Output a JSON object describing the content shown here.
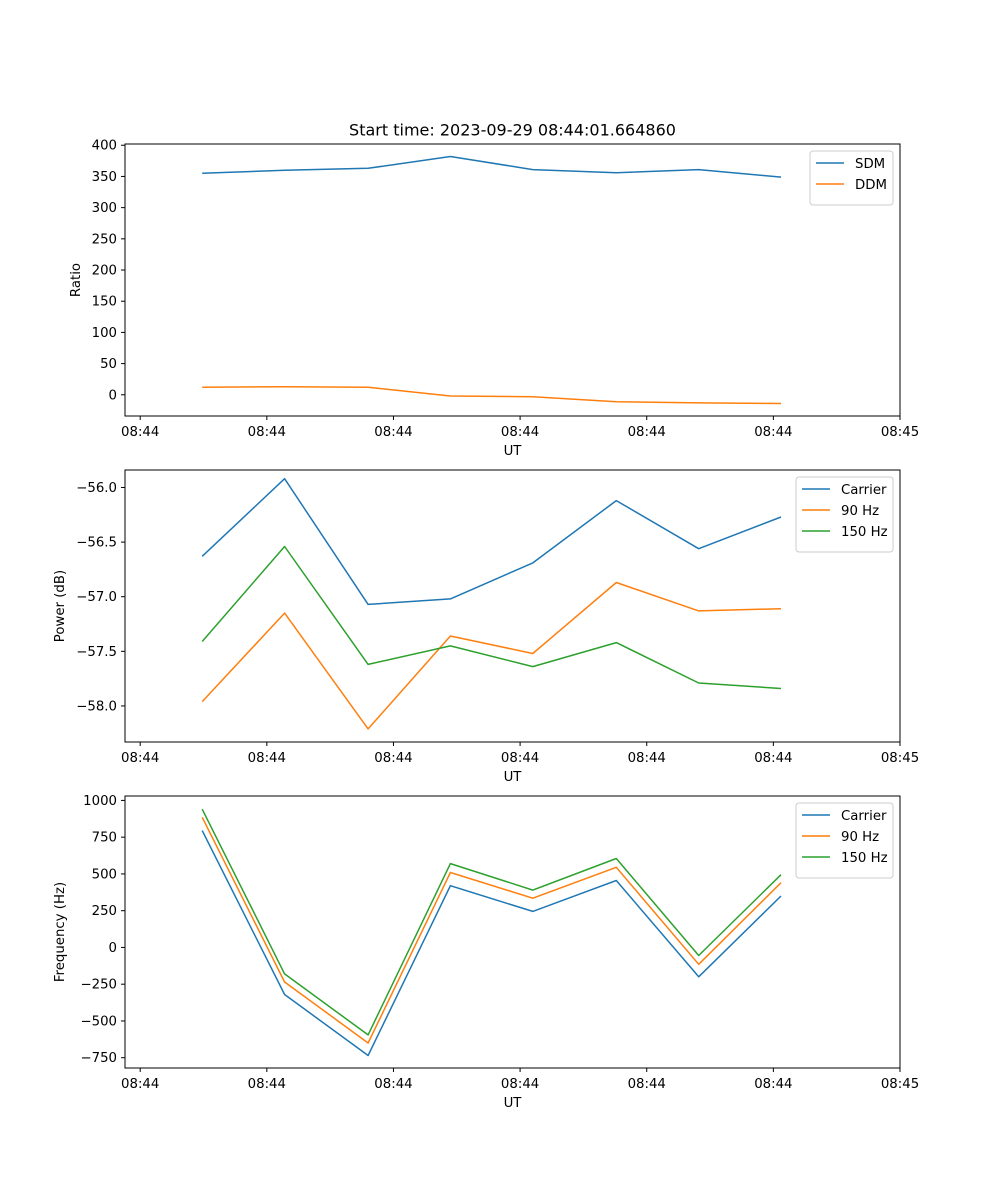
{
  "figure": {
    "title": "Start time: 2023-09-29 08:44:01.664860"
  },
  "chart_data": [
    {
      "type": "line",
      "title": "Start time: 2023-09-29 08:44:01.664860",
      "xlabel": "UT",
      "ylabel": "Ratio",
      "x_tick_labels": [
        "08:44",
        "08:44",
        "08:44",
        "08:44",
        "08:44",
        "08:44",
        "08:45"
      ],
      "x_tick_positions": [
        0,
        1,
        2,
        3,
        4,
        5,
        6
      ],
      "x": [
        0.49,
        1.14,
        1.8,
        2.45,
        3.1,
        3.76,
        4.41,
        5.06
      ],
      "xlim": [
        -0.12,
        6.0
      ],
      "ylim": [
        -34,
        402
      ],
      "y_ticks": [
        0,
        50,
        100,
        150,
        200,
        250,
        300,
        350,
        400
      ],
      "y_tick_labels": [
        "0",
        "50",
        "100",
        "150",
        "200",
        "250",
        "300",
        "350",
        "400"
      ],
      "legend_position": "top-right",
      "series": [
        {
          "name": "SDM",
          "color": "#1f77b4",
          "values": [
            355,
            360,
            363,
            382,
            361,
            356,
            361,
            349
          ]
        },
        {
          "name": "DDM",
          "color": "#ff7f0e",
          "values": [
            12,
            13,
            12,
            -2,
            -3,
            -11,
            -13,
            -14
          ]
        }
      ]
    },
    {
      "type": "line",
      "title": "",
      "xlabel": "UT",
      "ylabel": "Power (dB)",
      "x_tick_labels": [
        "08:44",
        "08:44",
        "08:44",
        "08:44",
        "08:44",
        "08:44",
        "08:45"
      ],
      "x_tick_positions": [
        0,
        1,
        2,
        3,
        4,
        5,
        6
      ],
      "x": [
        0.49,
        1.14,
        1.8,
        2.45,
        3.1,
        3.76,
        4.41,
        5.06
      ],
      "xlim": [
        -0.12,
        6.0
      ],
      "ylim": [
        -58.33,
        -55.84
      ],
      "y_ticks": [
        -58.0,
        -57.5,
        -57.0,
        -56.5,
        -56.0
      ],
      "y_tick_labels": [
        "−58.0",
        "−57.5",
        "−57.0",
        "−56.5",
        "−56.0"
      ],
      "legend_position": "top-right",
      "series": [
        {
          "name": "Carrier",
          "color": "#1f77b4",
          "values": [
            -56.63,
            -55.92,
            -57.07,
            -57.02,
            -56.69,
            -56.12,
            -56.56,
            -56.27
          ]
        },
        {
          "name": "90 Hz",
          "color": "#ff7f0e",
          "values": [
            -57.96,
            -57.15,
            -58.21,
            -57.36,
            -57.52,
            -56.87,
            -57.13,
            -57.11
          ]
        },
        {
          "name": "150 Hz",
          "color": "#2ca02c",
          "values": [
            -57.41,
            -56.54,
            -57.62,
            -57.45,
            -57.64,
            -57.42,
            -57.79,
            -57.84
          ]
        }
      ]
    },
    {
      "type": "line",
      "title": "",
      "xlabel": "UT",
      "ylabel": "Frequency (Hz)",
      "x_tick_labels": [
        "08:44",
        "08:44",
        "08:44",
        "08:44",
        "08:44",
        "08:44",
        "08:45"
      ],
      "x_tick_positions": [
        0,
        1,
        2,
        3,
        4,
        5,
        6
      ],
      "x": [
        0.49,
        1.14,
        1.8,
        2.45,
        3.1,
        3.76,
        4.41,
        5.06
      ],
      "xlim": [
        -0.12,
        6.0
      ],
      "ylim": [
        -820,
        1030
      ],
      "y_ticks": [
        -750,
        -500,
        -250,
        0,
        250,
        500,
        750,
        1000
      ],
      "y_tick_labels": [
        "−750",
        "−500",
        "−250",
        "0",
        "250",
        "500",
        "750",
        "1000"
      ],
      "legend_position": "top-right",
      "series": [
        {
          "name": "Carrier",
          "color": "#1f77b4",
          "values": [
            795,
            -320,
            -735,
            420,
            245,
            455,
            -200,
            350
          ]
        },
        {
          "name": "90 Hz",
          "color": "#ff7f0e",
          "values": [
            885,
            -235,
            -650,
            510,
            335,
            545,
            -115,
            440
          ]
        },
        {
          "name": "150 Hz",
          "color": "#2ca02c",
          "values": [
            940,
            -180,
            -595,
            570,
            390,
            605,
            -55,
            495
          ]
        }
      ]
    }
  ]
}
